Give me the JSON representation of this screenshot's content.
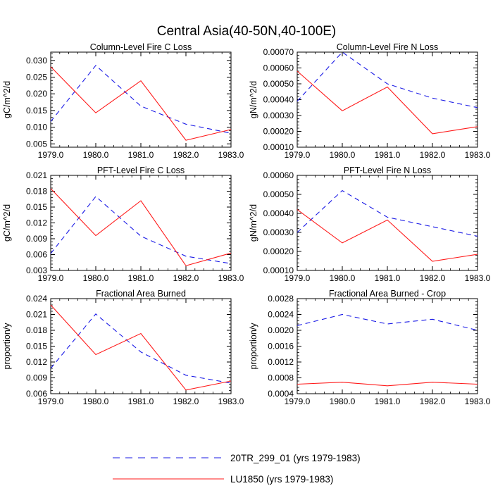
{
  "figure_title": "Central Asia(40-50N,40-100E)",
  "colors": {
    "case1": "#1a1ae6",
    "case2": "#ff1a1a",
    "axis": "#000000"
  },
  "legend": [
    {
      "label": "20TR_299_01 (yrs 1979-1983)",
      "style": "dashed",
      "color": "#1a1ae6"
    },
    {
      "label": "LU1850 (yrs 1979-1983)",
      "style": "solid",
      "color": "#ff1a1a"
    }
  ],
  "chart_data": [
    {
      "type": "line",
      "title": "Column-Level Fire C Loss",
      "ylabel": "gC/m^2/d",
      "x": [
        1979,
        1980,
        1981,
        1982,
        1983
      ],
      "xticks": [
        "1979.0",
        "1980.0",
        "1981.0",
        "1982.0",
        "1983.0"
      ],
      "ylim": [
        0.004,
        0.0325
      ],
      "yticks": [
        0.005,
        0.01,
        0.015,
        0.02,
        0.025,
        0.03
      ],
      "ytick_labels": [
        "0.005",
        "0.010",
        "0.015",
        "0.020",
        "0.025",
        "0.030"
      ],
      "series": [
        {
          "name": "20TR_299_01",
          "values": [
            0.0117,
            0.0285,
            0.0163,
            0.0109,
            0.0082
          ]
        },
        {
          "name": "LU1850",
          "values": [
            0.0281,
            0.0143,
            0.0239,
            0.0061,
            0.0093
          ]
        }
      ]
    },
    {
      "type": "line",
      "title": "Column-Level Fire N Loss",
      "ylabel": "gN/m^2/d",
      "x": [
        1979,
        1980,
        1981,
        1982,
        1983
      ],
      "xticks": [
        "1979.0",
        "1980.0",
        "1981.0",
        "1982.0",
        "1983.0"
      ],
      "ylim": [
        0.0001,
        0.0007
      ],
      "yticks": [
        0.0001,
        0.0002,
        0.0003,
        0.0004,
        0.0005,
        0.0006,
        0.0007
      ],
      "ytick_labels": [
        "0.00010",
        "0.00020",
        "0.00030",
        "0.00040",
        "0.00050",
        "0.00060",
        "0.00070"
      ],
      "series": [
        {
          "name": "20TR_299_01",
          "values": [
            0.00039,
            0.0007,
            0.0005,
            0.00041,
            0.00035
          ]
        },
        {
          "name": "LU1850",
          "values": [
            0.00058,
            0.00033,
            0.00048,
            0.000185,
            0.00023
          ]
        }
      ]
    },
    {
      "type": "line",
      "title": "PFT-Level Fire C Loss",
      "ylabel": "gC/m^2/d",
      "x": [
        1979,
        1980,
        1981,
        1982,
        1983
      ],
      "xticks": [
        "1979.0",
        "1980.0",
        "1981.0",
        "1982.0",
        "1983.0"
      ],
      "ylim": [
        0.003,
        0.021
      ],
      "yticks": [
        0.003,
        0.006,
        0.009,
        0.012,
        0.015,
        0.018,
        0.021
      ],
      "ytick_labels": [
        "0.003",
        "0.006",
        "0.009",
        "0.012",
        "0.015",
        "0.018",
        "0.021"
      ],
      "series": [
        {
          "name": "20TR_299_01",
          "values": [
            0.0062,
            0.017,
            0.0095,
            0.0057,
            0.0043
          ]
        },
        {
          "name": "LU1850",
          "values": [
            0.0185,
            0.0096,
            0.0162,
            0.0039,
            0.0063
          ]
        }
      ]
    },
    {
      "type": "line",
      "title": "PFT-Level Fire N Loss",
      "ylabel": "gN/m^2/d",
      "x": [
        1979,
        1980,
        1981,
        1982,
        1983
      ],
      "xticks": [
        "1979.0",
        "1980.0",
        "1981.0",
        "1982.0",
        "1983.0"
      ],
      "ylim": [
        0.0001,
        0.0006
      ],
      "yticks": [
        0.0001,
        0.0002,
        0.0003,
        0.0004,
        0.0005,
        0.0006
      ],
      "ytick_labels": [
        "0.00010",
        "0.00020",
        "0.00030",
        "0.00040",
        "0.00050",
        "0.00060"
      ],
      "series": [
        {
          "name": "20TR_299_01",
          "values": [
            0.0003,
            0.00052,
            0.00038,
            0.00033,
            0.00028
          ]
        },
        {
          "name": "LU1850",
          "values": [
            0.00042,
            0.000245,
            0.000365,
            0.000148,
            0.000185
          ]
        }
      ]
    },
    {
      "type": "line",
      "title": "Fractional Area Burned",
      "ylabel": "proportion/y",
      "x": [
        1979,
        1980,
        1981,
        1982,
        1983
      ],
      "xticks": [
        "1979.0",
        "1980.0",
        "1981.0",
        "1982.0",
        "1983.0"
      ],
      "ylim": [
        0.006,
        0.024
      ],
      "yticks": [
        0.006,
        0.009,
        0.012,
        0.015,
        0.018,
        0.021,
        0.024
      ],
      "ytick_labels": [
        "0.006",
        "0.009",
        "0.012",
        "0.015",
        "0.018",
        "0.021",
        "0.024"
      ],
      "series": [
        {
          "name": "20TR_299_01",
          "values": [
            0.0108,
            0.0211,
            0.0139,
            0.0095,
            0.008
          ]
        },
        {
          "name": "LU1850",
          "values": [
            0.0228,
            0.0134,
            0.0174,
            0.0067,
            0.0084
          ]
        }
      ]
    },
    {
      "type": "line",
      "title": "Fractional Area Burned - Crop",
      "ylabel": "proportion/y",
      "x": [
        1979,
        1980,
        1981,
        1982,
        1983
      ],
      "xticks": [
        "1979.0",
        "1980.0",
        "1981.0",
        "1982.0",
        "1983.0"
      ],
      "ylim": [
        0.0004,
        0.0028
      ],
      "yticks": [
        0.0004,
        0.0008,
        0.0012,
        0.0016,
        0.002,
        0.0024,
        0.0028
      ],
      "ytick_labels": [
        "0.0004",
        "0.0008",
        "0.0012",
        "0.0016",
        "0.0020",
        "0.0024",
        "0.0028"
      ],
      "series": [
        {
          "name": "20TR_299_01",
          "values": [
            0.00212,
            0.0024,
            0.00216,
            0.00228,
            0.002
          ]
        },
        {
          "name": "LU1850",
          "values": [
            0.00064,
            0.00069,
            0.0006,
            0.00069,
            0.00064
          ]
        }
      ]
    }
  ]
}
